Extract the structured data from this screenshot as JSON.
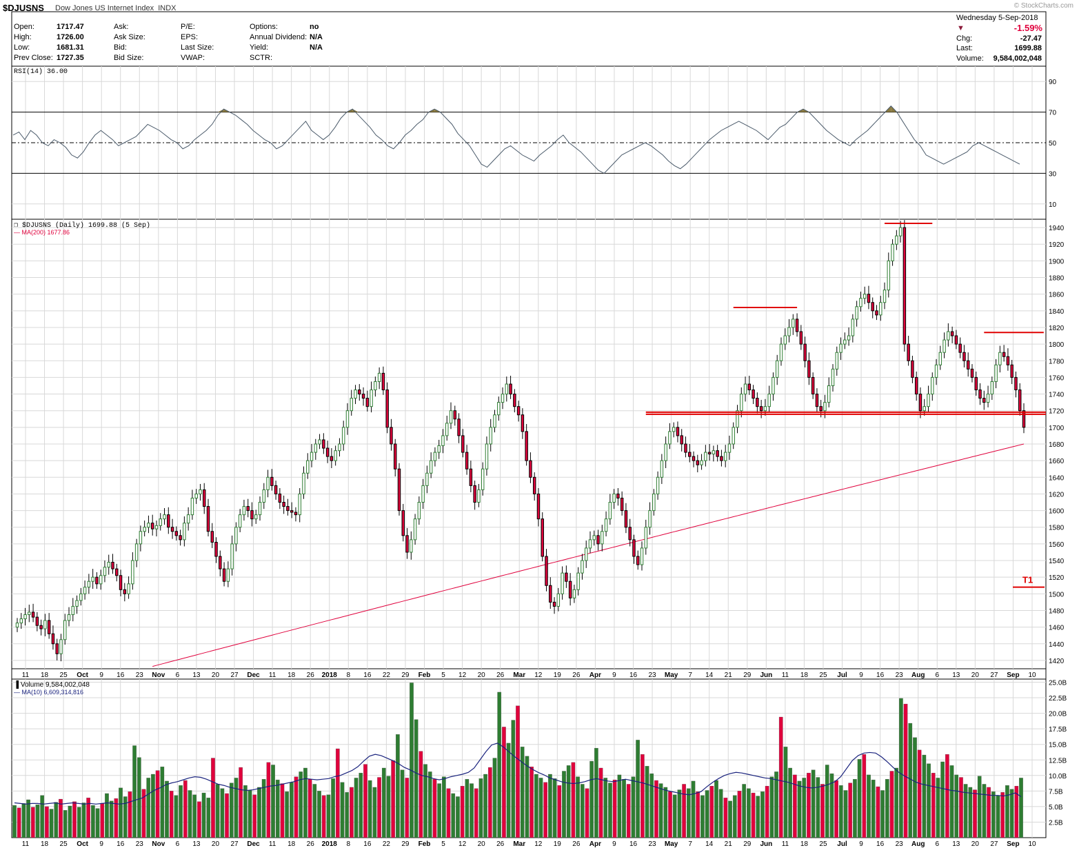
{
  "header": {
    "symbol": "$DJUSNS",
    "name": "Dow Jones US Internet Index",
    "exchange": "INDX",
    "watermark": "© StockCharts.com",
    "date": "Wednesday  5-Sep-2018",
    "change_pct": "-1.59%",
    "chg_label": "Chg:",
    "chg_value": "-27.47",
    "last_label": "Last:",
    "last_value": "1699.88",
    "volume_label": "Volume:",
    "volume_value": "9,584,002,048",
    "fields": [
      {
        "label": "Open:",
        "value": "1717.47"
      },
      {
        "label": "High:",
        "value": "1726.00"
      },
      {
        "label": "Low:",
        "value": "1681.31"
      },
      {
        "label": "Prev Close:",
        "value": "1727.35"
      }
    ],
    "fields2": [
      "Ask:",
      "Ask Size:",
      "Bid:",
      "Bid Size:"
    ],
    "fields3": [
      "P/E:",
      "EPS:",
      "Last Size:",
      "VWAP:"
    ],
    "fields4": [
      {
        "label": "Options:",
        "value": "no"
      },
      {
        "label": "Annual Dividend:",
        "value": "N/A"
      },
      {
        "label": "Yield:",
        "value": "N/A"
      },
      {
        "label": "SCTR:",
        "value": ""
      }
    ]
  },
  "colors": {
    "up": "#2e7d32",
    "down": "#e0003c",
    "ma": "#e0003c",
    "rsi": "#4a5a6a",
    "vol_ma": "#1a237e",
    "annot": "#e00000",
    "overbought": "#8a7a40",
    "grid": "#d8d8d8"
  },
  "chart_data": {
    "type": "candlestick",
    "rsi": {
      "label": "RSI(14) 36.00",
      "ylim": [
        0,
        100
      ],
      "ticks": [
        90,
        70,
        50,
        30,
        10
      ],
      "values": [
        55,
        57,
        52,
        58,
        55,
        50,
        48,
        52,
        50,
        47,
        42,
        40,
        44,
        50,
        55,
        58,
        55,
        52,
        48,
        50,
        52,
        54,
        58,
        62,
        60,
        58,
        55,
        52,
        50,
        46,
        48,
        52,
        55,
        58,
        62,
        68,
        72,
        70,
        68,
        65,
        62,
        58,
        55,
        52,
        50,
        46,
        48,
        52,
        56,
        60,
        64,
        58,
        55,
        52,
        55,
        60,
        66,
        70,
        72,
        68,
        64,
        60,
        55,
        52,
        48,
        46,
        50,
        55,
        58,
        62,
        65,
        70,
        72,
        70,
        66,
        62,
        56,
        52,
        48,
        42,
        36,
        34,
        38,
        42,
        46,
        48,
        45,
        42,
        40,
        38,
        42,
        45,
        48,
        52,
        55,
        50,
        47,
        44,
        40,
        36,
        32,
        30,
        34,
        38,
        42,
        44,
        46,
        48,
        50,
        48,
        45,
        42,
        38,
        35,
        33,
        36,
        40,
        44,
        48,
        52,
        55,
        58,
        60,
        62,
        64,
        62,
        60,
        58,
        55,
        52,
        56,
        60,
        62,
        66,
        70,
        72,
        70,
        66,
        62,
        58,
        55,
        52,
        50,
        48,
        52,
        55,
        58,
        62,
        66,
        70,
        74,
        70,
        64,
        58,
        52,
        48,
        42,
        40,
        38,
        36,
        38,
        40,
        42,
        44,
        48,
        50,
        48,
        46,
        44,
        42,
        40,
        38,
        36
      ],
      "tick_labels_left": [
        "11",
        "18",
        "25",
        "Oct",
        "9",
        "16",
        "23",
        "Nov",
        "6",
        "13",
        "20",
        "27",
        "Dec",
        "11",
        "18",
        "26",
        "2018",
        "8",
        "16",
        "22",
        "29",
        "Feb",
        "5",
        "12",
        "20",
        "26",
        "Mar",
        "12",
        "19",
        "26",
        "Apr",
        "9",
        "16",
        "23",
        "May",
        "7",
        "14",
        "21",
        "29",
        "Jun",
        "11",
        "18",
        "25",
        "Jul",
        "9",
        "16",
        "23",
        "Aug",
        "6",
        "13",
        "20",
        "27",
        "Sep",
        "10"
      ]
    },
    "price": {
      "label": "$DJUSNS (Daily) 1699.88 (5 Sep)",
      "ma_label": "MA(200) 1677.86",
      "ylim": [
        1410,
        1950
      ],
      "ticks": [
        1940,
        1920,
        1900,
        1880,
        1860,
        1840,
        1820,
        1800,
        1780,
        1760,
        1740,
        1720,
        1700,
        1680,
        1660,
        1640,
        1620,
        1600,
        1580,
        1560,
        1540,
        1520,
        1500,
        1480,
        1460,
        1440,
        1420
      ],
      "closes": [
        1465,
        1470,
        1475,
        1478,
        1472,
        1462,
        1458,
        1468,
        1452,
        1440,
        1428,
        1445,
        1468,
        1475,
        1485,
        1492,
        1500,
        1508,
        1515,
        1520,
        1512,
        1522,
        1532,
        1538,
        1530,
        1522,
        1505,
        1500,
        1512,
        1540,
        1560,
        1575,
        1580,
        1585,
        1578,
        1582,
        1590,
        1595,
        1580,
        1575,
        1570,
        1565,
        1585,
        1595,
        1615,
        1620,
        1625,
        1605,
        1575,
        1562,
        1545,
        1530,
        1515,
        1530,
        1560,
        1580,
        1595,
        1605,
        1600,
        1590,
        1595,
        1610,
        1625,
        1640,
        1630,
        1620,
        1610,
        1605,
        1600,
        1598,
        1595,
        1620,
        1645,
        1660,
        1670,
        1680,
        1685,
        1675,
        1665,
        1660,
        1672,
        1680,
        1700,
        1720,
        1735,
        1745,
        1740,
        1735,
        1725,
        1745,
        1755,
        1765,
        1745,
        1700,
        1680,
        1650,
        1600,
        1570,
        1550,
        1565,
        1590,
        1610,
        1630,
        1645,
        1660,
        1670,
        1678,
        1690,
        1705,
        1720,
        1710,
        1690,
        1670,
        1650,
        1630,
        1610,
        1625,
        1650,
        1680,
        1700,
        1715,
        1730,
        1740,
        1752,
        1740,
        1725,
        1715,
        1695,
        1660,
        1640,
        1620,
        1590,
        1545,
        1510,
        1490,
        1485,
        1500,
        1525,
        1515,
        1495,
        1505,
        1525,
        1540,
        1555,
        1565,
        1570,
        1560,
        1575,
        1590,
        1610,
        1620,
        1615,
        1600,
        1580,
        1565,
        1545,
        1535,
        1555,
        1580,
        1600,
        1620,
        1640,
        1660,
        1680,
        1695,
        1700,
        1690,
        1680,
        1670,
        1665,
        1660,
        1655,
        1660,
        1670,
        1668,
        1672,
        1665,
        1660,
        1670,
        1680,
        1700,
        1720,
        1740,
        1752,
        1745,
        1735,
        1725,
        1720,
        1725,
        1740,
        1760,
        1780,
        1800,
        1810,
        1820,
        1830,
        1815,
        1800,
        1780,
        1760,
        1740,
        1725,
        1720,
        1730,
        1750,
        1770,
        1790,
        1800,
        1805,
        1810,
        1830,
        1845,
        1855,
        1860,
        1850,
        1840,
        1835,
        1850,
        1865,
        1900,
        1920,
        1930,
        1940,
        1800,
        1780,
        1760,
        1740,
        1720,
        1725,
        1740,
        1760,
        1775,
        1790,
        1805,
        1815,
        1810,
        1800,
        1790,
        1780,
        1770,
        1760,
        1745,
        1735,
        1730,
        1740,
        1755,
        1775,
        1790,
        1785,
        1775,
        1760,
        1745,
        1720,
        1700
      ],
      "annotations": {
        "support_level": 1717,
        "t1_level": 1508,
        "t1_label": "T1",
        "resistance": [
          {
            "level": 1945,
            "from_idx": 218,
            "to_idx": 230
          },
          {
            "level": 1844,
            "from_idx": 180,
            "to_idx": 196
          },
          {
            "level": 1814,
            "from_idx": 243,
            "to_idx": 258
          }
        ]
      }
    },
    "volume": {
      "label": "Volume 9,584,002,048",
      "ma_label": "MA(10) 6,609,314,816",
      "ylim": [
        0,
        25.5
      ],
      "ticks": [
        "25.0B",
        "22.5B",
        "20.0B",
        "17.5B",
        "15.0B",
        "12.5B",
        "10.0B",
        "7.5B",
        "5.0B",
        "2.5B"
      ],
      "tick_values": [
        25,
        22.5,
        20,
        17.5,
        15,
        12.5,
        10,
        7.5,
        5,
        2.5
      ],
      "values": [
        5.2,
        4.8,
        5.5,
        6.1,
        4.9,
        5.3,
        6.8,
        5.0,
        4.6,
        5.7,
        6.2,
        4.4,
        5.1,
        5.8,
        4.9,
        5.6,
        6.4,
        5.2,
        4.7,
        5.5,
        7.1,
        5.9,
        6.3,
        8.0,
        6.6,
        7.4,
        14.8,
        12.9,
        7.8,
        9.6,
        10.2,
        10.8,
        11.4,
        9.1,
        7.5,
        6.8,
        8.4,
        9.2,
        7.6,
        6.9,
        5.8,
        7.2,
        6.4,
        12.8,
        8.6,
        7.9,
        7.1,
        8.8,
        9.6,
        11.3,
        8.4,
        7.6,
        6.9,
        8.1,
        9.4,
        12.1,
        11.7,
        9.3,
        8.7,
        7.4,
        8.9,
        9.8,
        10.6,
        11.2,
        9.4,
        8.6,
        7.5,
        6.8,
        6.9,
        9.5,
        14.3,
        8.9,
        7.3,
        8.1,
        9.6,
        10.4,
        11.8,
        9.2,
        8.1,
        9.7,
        11.2,
        9.9,
        12.4,
        16.6,
        10.9,
        9.6,
        24.9,
        19.0,
        13.9,
        11.8,
        10.6,
        9.4,
        8.7,
        9.8,
        7.9,
        7.1,
        6.6,
        8.3,
        9.4,
        8.7,
        7.9,
        9.5,
        10.2,
        11.3,
        12.8,
        23.4,
        17.8,
        15.2,
        18.9,
        21.2,
        14.6,
        13.1,
        11.4,
        10.2,
        9.6,
        8.9,
        10.2,
        9.5,
        8.4,
        10.7,
        11.6,
        12.1,
        9.8,
        8.6,
        7.9,
        12.3,
        14.4,
        11.2,
        9.6,
        8.8,
        9.3,
        10.1,
        9.4,
        8.6,
        9.8,
        15.7,
        13.4,
        11.5,
        10.3,
        9.2,
        8.7,
        8.1,
        7.4,
        6.9,
        7.7,
        8.6,
        7.9,
        9.1,
        7.4,
        6.8,
        7.6,
        8.3,
        9.2,
        7.8,
        6.4,
        5.9,
        6.8,
        7.5,
        8.6,
        7.9,
        7.2,
        6.7,
        7.4,
        8.3,
        9.8,
        10.6,
        19.4,
        14.6,
        11.2,
        10.1,
        9.1,
        9.6,
        10.4,
        10.9,
        9.7,
        8.6,
        11.7,
        10.3,
        9.2,
        8.4,
        7.6,
        8.8,
        9.4,
        12.6,
        13.4,
        10.1,
        9.3,
        8.2,
        7.6,
        9.4,
        10.7,
        11.2,
        22.4,
        21.5,
        18.4,
        16.1,
        14.1,
        13.3,
        11.9,
        10.4,
        9.6,
        12.2,
        13.4,
        11.6,
        10.1,
        9.7,
        8.6,
        8.1,
        7.7,
        9.9,
        8.6,
        8.1,
        7.4,
        6.8,
        7.3,
        8.4,
        7.8,
        8.3,
        9.6
      ],
      "ma": [
        5.6,
        5.5,
        5.4,
        5.5,
        5.5,
        5.4,
        5.5,
        5.6,
        5.4,
        5.5,
        5.6,
        5.5,
        5.4,
        5.5,
        5.4,
        5.5,
        5.6,
        5.5,
        5.4,
        5.5,
        5.8,
        6.1,
        6.4,
        7.0,
        7.6,
        8.0,
        8.5,
        8.8,
        9.0,
        9.3,
        9.6,
        9.8,
        9.7,
        9.4,
        9.0,
        8.6,
        8.4,
        8.1,
        7.9,
        7.7,
        7.6,
        7.7,
        7.9,
        8.1,
        8.3,
        8.4,
        8.6,
        8.8,
        9.0,
        9.3,
        9.5,
        9.4,
        9.3,
        9.4,
        9.5,
        9.8,
        10.0,
        10.4,
        10.8,
        11.4,
        12.3,
        13.1,
        13.4,
        13.2,
        12.8,
        12.4,
        11.9,
        11.3,
        10.9,
        10.4,
        10.0,
        9.8,
        9.5,
        9.3,
        9.5,
        9.8,
        10.0,
        10.2,
        10.5,
        11.2,
        12.5,
        13.8,
        14.9,
        15.2,
        14.6,
        13.8,
        13.0,
        12.3,
        11.6,
        11.0,
        10.5,
        10.1,
        9.6,
        9.3,
        9.0,
        8.8,
        8.7,
        8.8,
        9.0,
        9.3,
        9.5,
        9.3,
        9.1,
        9.0,
        9.2,
        9.4,
        9.2,
        9.0,
        8.8,
        8.5,
        8.2,
        7.9,
        7.6,
        7.4,
        7.2,
        7.0,
        6.9,
        7.1,
        7.4,
        8.2,
        8.9,
        9.5,
        10.0,
        10.3,
        10.5,
        10.4,
        10.2,
        10.0,
        9.8,
        9.6,
        9.5,
        9.3,
        9.1,
        8.9,
        8.6,
        8.3,
        8.1,
        8.0,
        8.1,
        8.3,
        8.6,
        9.0,
        9.8,
        11.1,
        12.4,
        13.2,
        13.6,
        13.7,
        13.6,
        13.0,
        12.2,
        11.3,
        10.5,
        9.9,
        9.4,
        8.9,
        8.6,
        8.4,
        8.2,
        8.0,
        7.8,
        7.6,
        7.5,
        7.3,
        7.2,
        7.1,
        7.0,
        6.9,
        6.8,
        6.8,
        6.7,
        6.9,
        7.2,
        6.6
      ]
    },
    "x_labels": [
      "11",
      "18",
      "25",
      "Oct",
      "9",
      "16",
      "23",
      "Nov",
      "6",
      "13",
      "20",
      "27",
      "Dec",
      "11",
      "18",
      "26",
      "2018",
      "8",
      "16",
      "22",
      "29",
      "Feb",
      "5",
      "12",
      "20",
      "26",
      "Mar",
      "12",
      "19",
      "26",
      "Apr",
      "9",
      "16",
      "23",
      "May",
      "7",
      "14",
      "21",
      "29",
      "Jun",
      "11",
      "18",
      "25",
      "Jul",
      "9",
      "16",
      "23",
      "Aug",
      "6",
      "13",
      "20",
      "27",
      "Sep",
      "10"
    ],
    "x_label_bold": [
      "Oct",
      "Nov",
      "Dec",
      "2018",
      "Feb",
      "Mar",
      "Apr",
      "May",
      "Jun",
      "Jul",
      "Aug",
      "Sep"
    ]
  }
}
